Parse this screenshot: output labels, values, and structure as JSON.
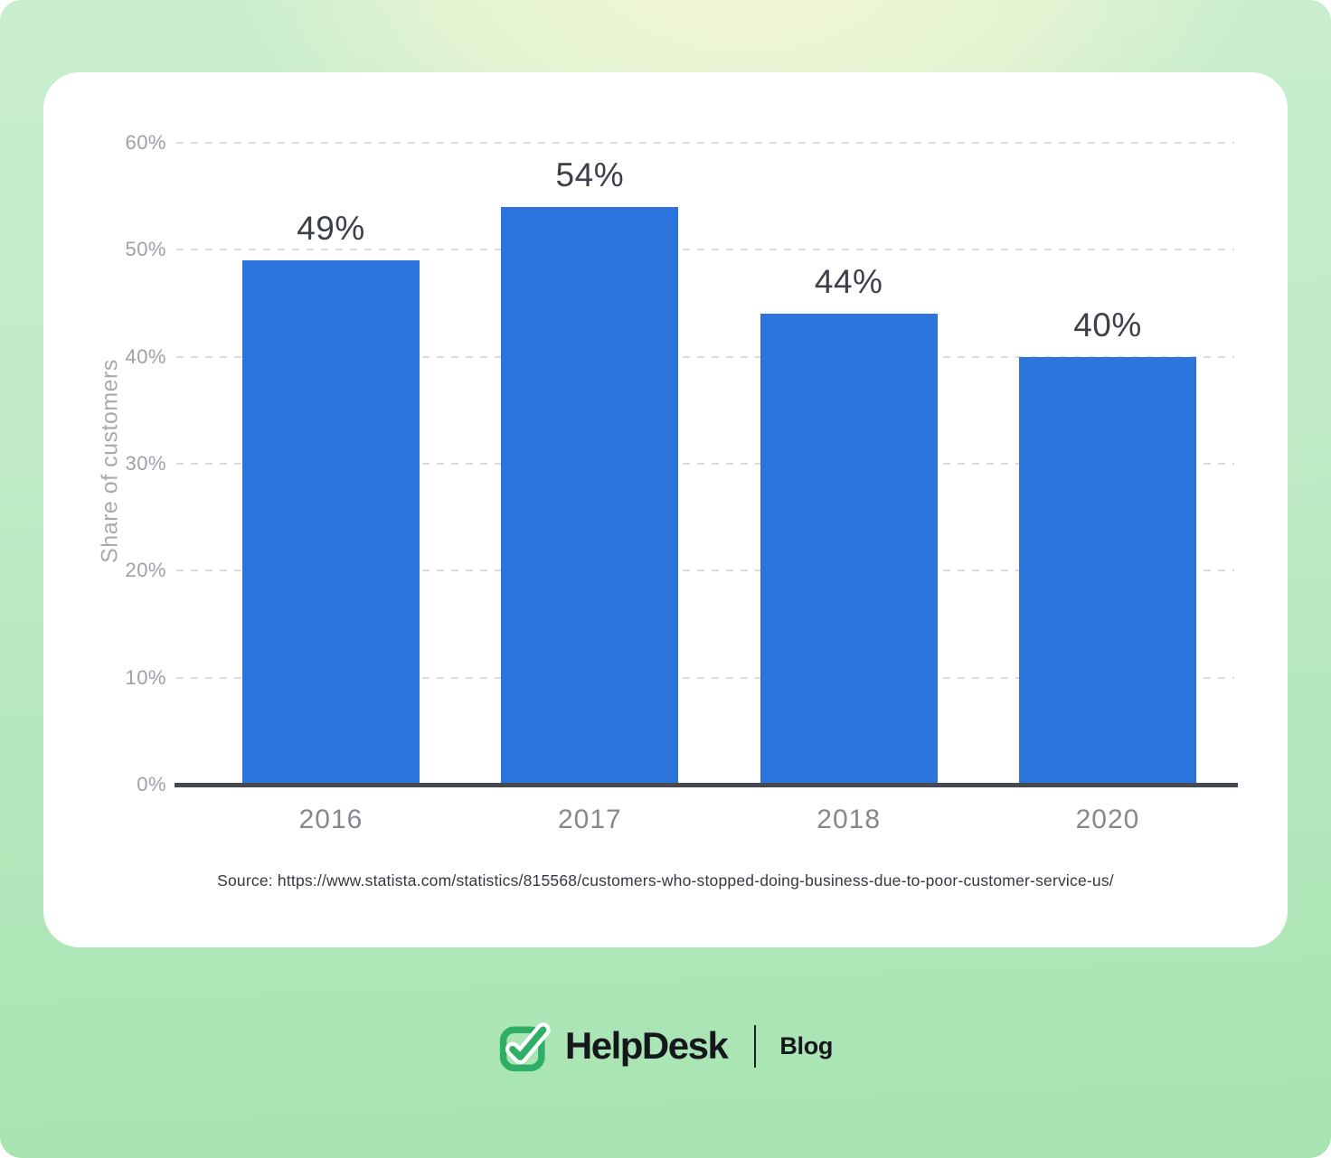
{
  "colors": {
    "bar_blue": "#2b74dc",
    "brand_green": "#2fae66",
    "axis_dark": "#45484e",
    "grid_gray": "#dadbde"
  },
  "chart_data": {
    "type": "bar",
    "title": "",
    "categories": [
      "2016",
      "2017",
      "2018",
      "2020"
    ],
    "values": [
      49,
      54,
      44,
      40
    ],
    "value_labels": [
      "49%",
      "54%",
      "44%",
      "40%"
    ],
    "xlabel": "",
    "ylabel": "Share of customers",
    "ylim": [
      0,
      60
    ],
    "yticks": [
      {
        "value": 0,
        "label": "0%"
      },
      {
        "value": 10,
        "label": "10%"
      },
      {
        "value": 20,
        "label": "20%"
      },
      {
        "value": 30,
        "label": "30%"
      },
      {
        "value": 40,
        "label": "40%"
      },
      {
        "value": 50,
        "label": "50%"
      },
      {
        "value": 60,
        "label": "60%"
      }
    ],
    "grid": "horizontal-dashed",
    "legend": "none",
    "bar_color": "#2b74dc"
  },
  "source": {
    "text": "Source: https://www.statista.com/statistics/815568/customers-who-stopped-doing-business-due-to-poor-customer-service-us/"
  },
  "footer": {
    "brand": "HelpDesk",
    "blog_label": "Blog",
    "logo_icon": "checkmark-in-rounded-square"
  }
}
